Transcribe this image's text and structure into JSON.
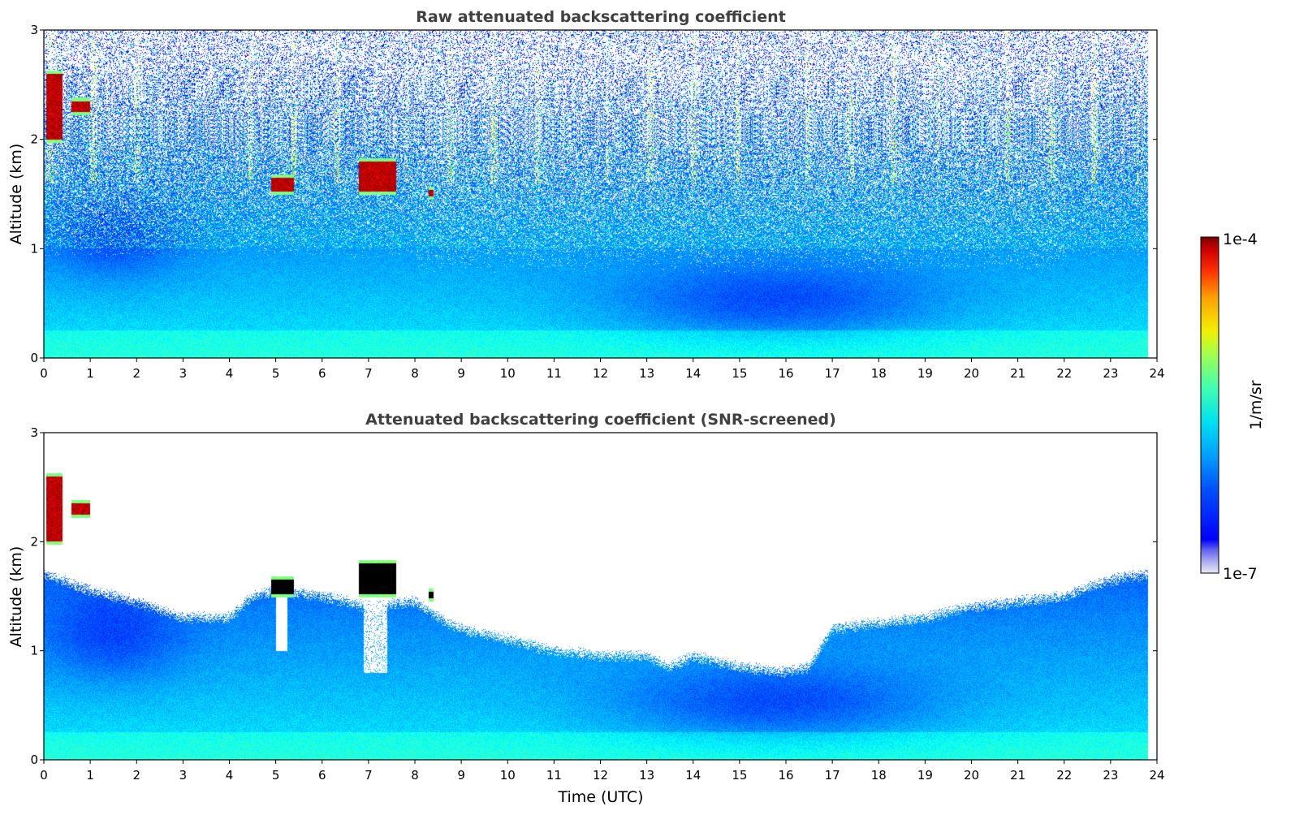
{
  "chart_data": [
    {
      "type": "heatmap",
      "title": "Raw attenuated backscattering coefficient",
      "xlabel": "",
      "ylabel": "Altitude (km)",
      "xlim": [
        0,
        24
      ],
      "ylim": [
        0,
        3
      ],
      "x_ticks": [
        "0",
        "1",
        "2",
        "3",
        "4",
        "5",
        "6",
        "7",
        "8",
        "9",
        "10",
        "11",
        "12",
        "13",
        "14",
        "15",
        "16",
        "17",
        "18",
        "19",
        "20",
        "21",
        "22",
        "23",
        "24"
      ],
      "y_ticks": [
        "0",
        "1",
        "2",
        "3"
      ],
      "noise_mode": "raw",
      "cloud_layers": [
        {
          "t_start": 0.05,
          "t_end": 0.4,
          "alt_bottom": 2.0,
          "alt_top": 2.6
        },
        {
          "t_start": 0.6,
          "t_end": 1.0,
          "alt_bottom": 2.25,
          "alt_top": 2.35
        },
        {
          "t_start": 4.9,
          "t_end": 5.4,
          "alt_bottom": 1.52,
          "alt_top": 1.65
        },
        {
          "t_start": 6.8,
          "t_end": 7.6,
          "alt_bottom": 1.52,
          "alt_top": 1.8
        },
        {
          "t_start": 8.3,
          "t_end": 8.4,
          "alt_bottom": 1.48,
          "alt_top": 1.54
        }
      ]
    },
    {
      "type": "heatmap",
      "title": "Attenuated backscattering coefficient (SNR-screened)",
      "xlabel": "Time (UTC)",
      "ylabel": "Altitude (km)",
      "xlim": [
        0,
        24
      ],
      "ylim": [
        0,
        3
      ],
      "x_ticks": [
        "0",
        "1",
        "2",
        "3",
        "4",
        "5",
        "6",
        "7",
        "8",
        "9",
        "10",
        "11",
        "12",
        "13",
        "14",
        "15",
        "16",
        "17",
        "18",
        "19",
        "20",
        "21",
        "22",
        "23",
        "24"
      ],
      "y_ticks": [
        "0",
        "1",
        "2",
        "3"
      ],
      "noise_mode": "screened",
      "boundary_layer_top_km": {
        "t": [
          0,
          1,
          2,
          3,
          4,
          4.5,
          5,
          6,
          7,
          8,
          8.5,
          9,
          10,
          11,
          12,
          13,
          13.5,
          14,
          15,
          16,
          16.5,
          17,
          18,
          19,
          20,
          21,
          22,
          23,
          23.8
        ],
        "alt": [
          1.7,
          1.55,
          1.45,
          1.3,
          1.3,
          1.5,
          1.55,
          1.5,
          1.4,
          1.45,
          1.3,
          1.2,
          1.1,
          1.0,
          0.95,
          0.95,
          0.85,
          0.95,
          0.85,
          0.8,
          0.85,
          1.2,
          1.25,
          1.3,
          1.4,
          1.45,
          1.5,
          1.65,
          1.7
        ]
      },
      "cloud_layers": [
        {
          "t_start": 0.05,
          "t_end": 0.4,
          "alt_bottom": 2.0,
          "alt_top": 2.6
        },
        {
          "t_start": 0.6,
          "t_end": 1.0,
          "alt_bottom": 2.25,
          "alt_top": 2.35
        },
        {
          "t_start": 4.9,
          "t_end": 5.4,
          "alt_bottom": 1.52,
          "alt_top": 1.65
        },
        {
          "t_start": 6.8,
          "t_end": 7.6,
          "alt_bottom": 1.52,
          "alt_top": 1.8
        },
        {
          "t_start": 8.3,
          "t_end": 8.4,
          "alt_bottom": 1.48,
          "alt_top": 1.54
        }
      ]
    }
  ],
  "colorbar": {
    "label": "1/m/sr",
    "max_label": "1e-4",
    "min_label": "1e-7",
    "colormap": "jet",
    "scale": "log",
    "range": [
      1e-07,
      0.0001
    ]
  }
}
